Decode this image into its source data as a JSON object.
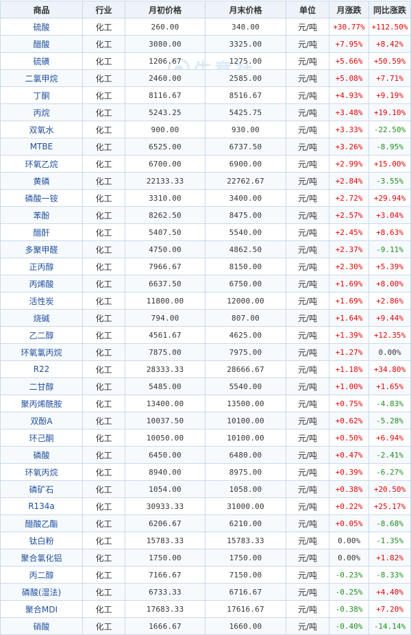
{
  "headers": {
    "product": "商品",
    "industry": "行业",
    "start_price": "月初价格",
    "end_price": "月末价格",
    "unit": "单位",
    "month_change": "月涨跌",
    "yoy_change": "同比涨跌"
  },
  "watermark": {
    "text": "生意社",
    "url": "100ppi"
  },
  "colors": {
    "up": "#e60000",
    "down": "#1a8f1a",
    "name": "#1f4f9e",
    "border": "#c9d9ea"
  },
  "rows": [
    {
      "name": "硫酸",
      "industry": "化工",
      "start": "260.00",
      "end": "340.00",
      "unit": "元/吨",
      "mchg": "+30.77%",
      "ychg": "+112.50%"
    },
    {
      "name": "醋酸",
      "industry": "化工",
      "start": "3080.00",
      "end": "3325.00",
      "unit": "元/吨",
      "mchg": "+7.95%",
      "ychg": "+8.42%"
    },
    {
      "name": "硫磺",
      "industry": "化工",
      "start": "1206.67",
      "end": "1275.00",
      "unit": "元/吨",
      "mchg": "+5.66%",
      "ychg": "+50.59%"
    },
    {
      "name": "二氯甲烷",
      "industry": "化工",
      "start": "2460.00",
      "end": "2585.00",
      "unit": "元/吨",
      "mchg": "+5.08%",
      "ychg": "+7.71%"
    },
    {
      "name": "丁酮",
      "industry": "化工",
      "start": "8116.67",
      "end": "8516.67",
      "unit": "元/吨",
      "mchg": "+4.93%",
      "ychg": "+9.19%"
    },
    {
      "name": "丙烷",
      "industry": "化工",
      "start": "5243.25",
      "end": "5425.75",
      "unit": "元/吨",
      "mchg": "+3.48%",
      "ychg": "+19.10%"
    },
    {
      "name": "双氧水",
      "industry": "化工",
      "start": "900.00",
      "end": "930.00",
      "unit": "元/吨",
      "mchg": "+3.33%",
      "ychg": "-22.50%"
    },
    {
      "name": "MTBE",
      "industry": "化工",
      "start": "6525.00",
      "end": "6737.50",
      "unit": "元/吨",
      "mchg": "+3.26%",
      "ychg": "-8.95%"
    },
    {
      "name": "环氧乙烷",
      "industry": "化工",
      "start": "6700.00",
      "end": "6900.00",
      "unit": "元/吨",
      "mchg": "+2.99%",
      "ychg": "+15.00%"
    },
    {
      "name": "黄磷",
      "industry": "化工",
      "start": "22133.33",
      "end": "22762.67",
      "unit": "元/吨",
      "mchg": "+2.84%",
      "ychg": "-3.55%"
    },
    {
      "name": "磷酸一铵",
      "industry": "化工",
      "start": "3310.00",
      "end": "3400.00",
      "unit": "元/吨",
      "mchg": "+2.72%",
      "ychg": "+29.94%"
    },
    {
      "name": "苯酚",
      "industry": "化工",
      "start": "8262.50",
      "end": "8475.00",
      "unit": "元/吨",
      "mchg": "+2.57%",
      "ychg": "+3.04%"
    },
    {
      "name": "醋酐",
      "industry": "化工",
      "start": "5407.50",
      "end": "5540.00",
      "unit": "元/吨",
      "mchg": "+2.45%",
      "ychg": "+8.63%"
    },
    {
      "name": "多聚甲醛",
      "industry": "化工",
      "start": "4750.00",
      "end": "4862.50",
      "unit": "元/吨",
      "mchg": "+2.37%",
      "ychg": "-9.11%"
    },
    {
      "name": "正丙醇",
      "industry": "化工",
      "start": "7966.67",
      "end": "8150.00",
      "unit": "元/吨",
      "mchg": "+2.30%",
      "ychg": "+5.39%"
    },
    {
      "name": "丙烯酸",
      "industry": "化工",
      "start": "6637.50",
      "end": "6750.00",
      "unit": "元/吨",
      "mchg": "+1.69%",
      "ychg": "+8.00%"
    },
    {
      "name": "活性炭",
      "industry": "化工",
      "start": "11800.00",
      "end": "12000.00",
      "unit": "元/吨",
      "mchg": "+1.69%",
      "ychg": "+2.86%"
    },
    {
      "name": "烧碱",
      "industry": "化工",
      "start": "794.00",
      "end": "807.00",
      "unit": "元/吨",
      "mchg": "+1.64%",
      "ychg": "+9.44%"
    },
    {
      "name": "乙二醇",
      "industry": "化工",
      "start": "4561.67",
      "end": "4625.00",
      "unit": "元/吨",
      "mchg": "+1.39%",
      "ychg": "+12.35%"
    },
    {
      "name": "环氧氯丙烷",
      "industry": "化工",
      "start": "7875.00",
      "end": "7975.00",
      "unit": "元/吨",
      "mchg": "+1.27%",
      "ychg": "0.00%"
    },
    {
      "name": "R22",
      "industry": "化工",
      "start": "28333.33",
      "end": "28666.67",
      "unit": "元/吨",
      "mchg": "+1.18%",
      "ychg": "+34.80%"
    },
    {
      "name": "二甘醇",
      "industry": "化工",
      "start": "5485.00",
      "end": "5540.00",
      "unit": "元/吨",
      "mchg": "+1.00%",
      "ychg": "+1.65%"
    },
    {
      "name": "聚丙烯酰胺",
      "industry": "化工",
      "start": "13400.00",
      "end": "13500.00",
      "unit": "元/吨",
      "mchg": "+0.75%",
      "ychg": "-4.83%"
    },
    {
      "name": "双酚A",
      "industry": "化工",
      "start": "10037.50",
      "end": "10100.00",
      "unit": "元/吨",
      "mchg": "+0.62%",
      "ychg": "-5.28%"
    },
    {
      "name": "环己酮",
      "industry": "化工",
      "start": "10050.00",
      "end": "10100.00",
      "unit": "元/吨",
      "mchg": "+0.50%",
      "ychg": "+6.94%"
    },
    {
      "name": "磷酸",
      "industry": "化工",
      "start": "6450.00",
      "end": "6480.00",
      "unit": "元/吨",
      "mchg": "+0.47%",
      "ychg": "-2.41%"
    },
    {
      "name": "环氧丙烷",
      "industry": "化工",
      "start": "8940.00",
      "end": "8975.00",
      "unit": "元/吨",
      "mchg": "+0.39%",
      "ychg": "-6.27%"
    },
    {
      "name": "磷矿石",
      "industry": "化工",
      "start": "1054.00",
      "end": "1058.00",
      "unit": "元/吨",
      "mchg": "+0.38%",
      "ychg": "+20.50%"
    },
    {
      "name": "R134a",
      "industry": "化工",
      "start": "30933.33",
      "end": "31000.00",
      "unit": "元/吨",
      "mchg": "+0.22%",
      "ychg": "+25.17%"
    },
    {
      "name": "醋酸乙酯",
      "industry": "化工",
      "start": "6206.67",
      "end": "6210.00",
      "unit": "元/吨",
      "mchg": "+0.05%",
      "ychg": "-8.68%"
    },
    {
      "name": "钛白粉",
      "industry": "化工",
      "start": "15783.33",
      "end": "15783.33",
      "unit": "元/吨",
      "mchg": "0.00%",
      "ychg": "-1.35%"
    },
    {
      "name": "聚合氯化铝",
      "industry": "化工",
      "start": "1750.00",
      "end": "1750.00",
      "unit": "元/吨",
      "mchg": "0.00%",
      "ychg": "+1.82%"
    },
    {
      "name": "丙二醇",
      "industry": "化工",
      "start": "7166.67",
      "end": "7150.00",
      "unit": "元/吨",
      "mchg": "-0.23%",
      "ychg": "-8.33%"
    },
    {
      "name": "磷酸(湿法)",
      "industry": "化工",
      "start": "6733.33",
      "end": "6716.67",
      "unit": "元/吨",
      "mchg": "-0.25%",
      "ychg": "+4.40%"
    },
    {
      "name": "聚合MDI",
      "industry": "化工",
      "start": "17683.33",
      "end": "17616.67",
      "unit": "元/吨",
      "mchg": "-0.38%",
      "ychg": "+7.20%"
    },
    {
      "name": "硝酸",
      "industry": "化工",
      "start": "1666.67",
      "end": "1660.00",
      "unit": "元/吨",
      "mchg": "-0.40%",
      "ychg": "-14.14%"
    }
  ]
}
